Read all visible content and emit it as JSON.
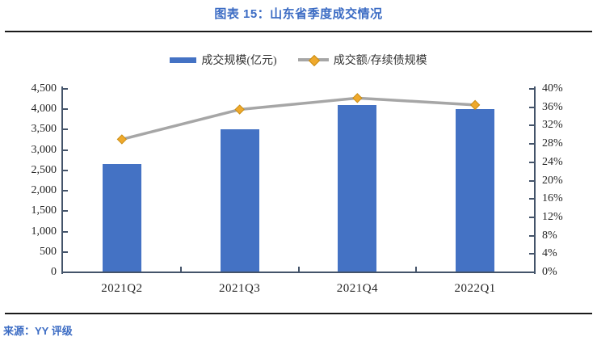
{
  "header": {
    "title": "图表 15：山东省季度成交情况"
  },
  "footer": {
    "source": "来源：YY 评级"
  },
  "legend": [
    {
      "label": "成交规模(亿元)",
      "type": "bar"
    },
    {
      "label": "成交额/存续债规模",
      "type": "line"
    }
  ],
  "colors": {
    "bar_blue": "#4472C4",
    "line_gray": "#A6A6A6",
    "marker_gold_fill": "#EFA92C",
    "marker_gold_stroke": "#C98C12",
    "axis_slate": "#44546A",
    "accent_title_blue": "#3C6CC4"
  },
  "chart_data": {
    "type": "bar",
    "subtype": "bar-line-combo",
    "title": "图表 15：山东省季度成交情况",
    "categories": [
      "2021Q2",
      "2021Q3",
      "2021Q4",
      "2022Q1"
    ],
    "series": [
      {
        "name": "成交规模(亿元)",
        "type": "bar",
        "axis": "left",
        "values": [
          2650,
          3500,
          4100,
          4000
        ],
        "color": "#4472C4"
      },
      {
        "name": "成交额/存续债规模",
        "type": "line",
        "axis": "right",
        "unit": "%",
        "values": [
          29,
          35.5,
          38,
          36.5
        ],
        "color": "#A6A6A6",
        "marker": "diamond",
        "marker_color": "#EFA92C"
      }
    ],
    "left_axis": {
      "min": 0,
      "max": 4500,
      "step": 500,
      "labels": [
        "0",
        "500",
        "1,000",
        "1,500",
        "2,000",
        "2,500",
        "3,000",
        "3,500",
        "4,000",
        "4,500"
      ]
    },
    "right_axis": {
      "min": 0,
      "max": 40,
      "step": 4,
      "labels": [
        "0%",
        "4%",
        "8%",
        "12%",
        "16%",
        "20%",
        "24%",
        "28%",
        "32%",
        "36%",
        "40%"
      ]
    },
    "grid": false,
    "legend_position": "top"
  }
}
